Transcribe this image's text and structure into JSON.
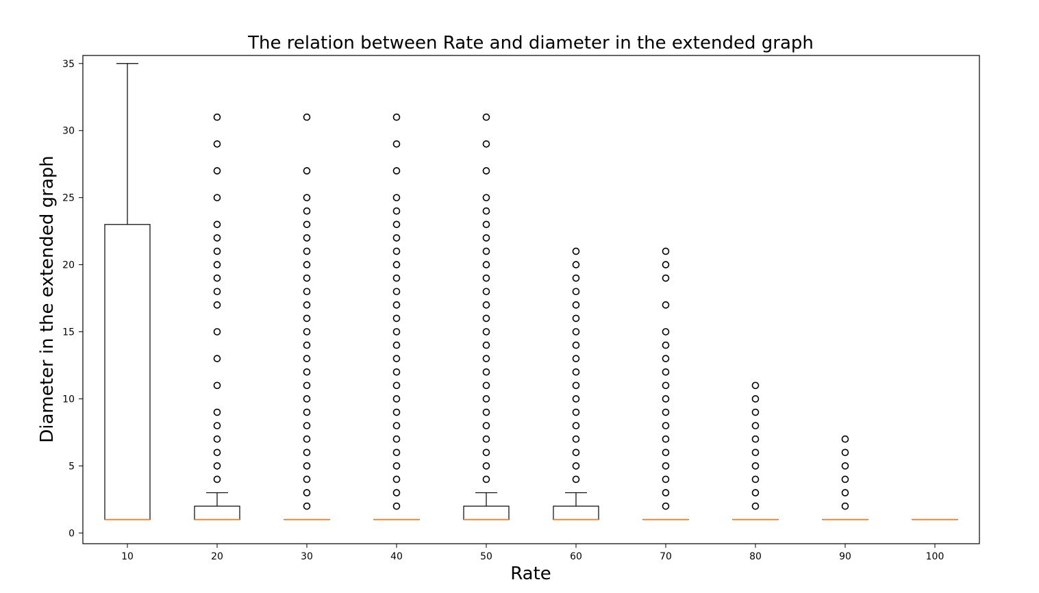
{
  "chart_data": {
    "type": "box",
    "title": "The relation between Rate and diameter in the extended graph",
    "xlabel": "Rate",
    "ylabel": "Diameter in the extended graph",
    "categories": [
      "10",
      "20",
      "30",
      "40",
      "50",
      "60",
      "70",
      "80",
      "90",
      "100"
    ],
    "ylim": [
      -0.8,
      35.6
    ],
    "yticks": [
      0,
      5,
      10,
      15,
      20,
      25,
      30,
      35
    ],
    "grid": false,
    "colors": {
      "box": "#000000",
      "median": "#e08a3c",
      "outlier": "#000000"
    },
    "boxes": [
      {
        "category": "10",
        "q1": 1,
        "median": 1,
        "q3": 23,
        "whislo": 1,
        "whishi": 35,
        "fliers": []
      },
      {
        "category": "20",
        "q1": 1,
        "median": 1,
        "q3": 2,
        "whislo": 1,
        "whishi": 3,
        "fliers": [
          4,
          5,
          6,
          7,
          8,
          9,
          11,
          13,
          15,
          17,
          18,
          19,
          20,
          21,
          22,
          23,
          25,
          27,
          29,
          31
        ]
      },
      {
        "category": "30",
        "q1": 1,
        "median": 1,
        "q3": 1,
        "whislo": 1,
        "whishi": 1,
        "fliers": [
          2,
          3,
          4,
          5,
          6,
          7,
          8,
          9,
          10,
          11,
          12,
          13,
          14,
          15,
          16,
          17,
          18,
          19,
          20,
          21,
          22,
          23,
          24,
          25,
          27,
          31
        ]
      },
      {
        "category": "40",
        "q1": 1,
        "median": 1,
        "q3": 1,
        "whislo": 1,
        "whishi": 1,
        "fliers": [
          2,
          3,
          4,
          5,
          6,
          7,
          8,
          9,
          10,
          11,
          12,
          13,
          14,
          15,
          16,
          17,
          18,
          19,
          20,
          21,
          22,
          23,
          24,
          25,
          27,
          29,
          31
        ]
      },
      {
        "category": "50",
        "q1": 1,
        "median": 1,
        "q3": 2,
        "whislo": 1,
        "whishi": 3,
        "fliers": [
          4,
          5,
          6,
          7,
          8,
          9,
          10,
          11,
          12,
          13,
          14,
          15,
          16,
          17,
          18,
          19,
          20,
          21,
          22,
          23,
          24,
          25,
          27,
          29,
          31
        ]
      },
      {
        "category": "60",
        "q1": 1,
        "median": 1,
        "q3": 2,
        "whislo": 1,
        "whishi": 3,
        "fliers": [
          4,
          5,
          6,
          7,
          8,
          9,
          10,
          11,
          12,
          13,
          14,
          15,
          16,
          17,
          18,
          19,
          20,
          21
        ]
      },
      {
        "category": "70",
        "q1": 1,
        "median": 1,
        "q3": 1,
        "whislo": 1,
        "whishi": 1,
        "fliers": [
          2,
          3,
          4,
          5,
          6,
          7,
          8,
          9,
          10,
          11,
          12,
          13,
          14,
          15,
          17,
          19,
          20,
          21
        ]
      },
      {
        "category": "80",
        "q1": 1,
        "median": 1,
        "q3": 1,
        "whislo": 1,
        "whishi": 1,
        "fliers": [
          2,
          3,
          4,
          5,
          6,
          7,
          8,
          9,
          10,
          11
        ]
      },
      {
        "category": "90",
        "q1": 1,
        "median": 1,
        "q3": 1,
        "whislo": 1,
        "whishi": 1,
        "fliers": [
          2,
          3,
          4,
          5,
          6,
          7
        ]
      },
      {
        "category": "100",
        "q1": 1,
        "median": 1,
        "q3": 1,
        "whislo": 1,
        "whishi": 1,
        "fliers": []
      }
    ]
  }
}
